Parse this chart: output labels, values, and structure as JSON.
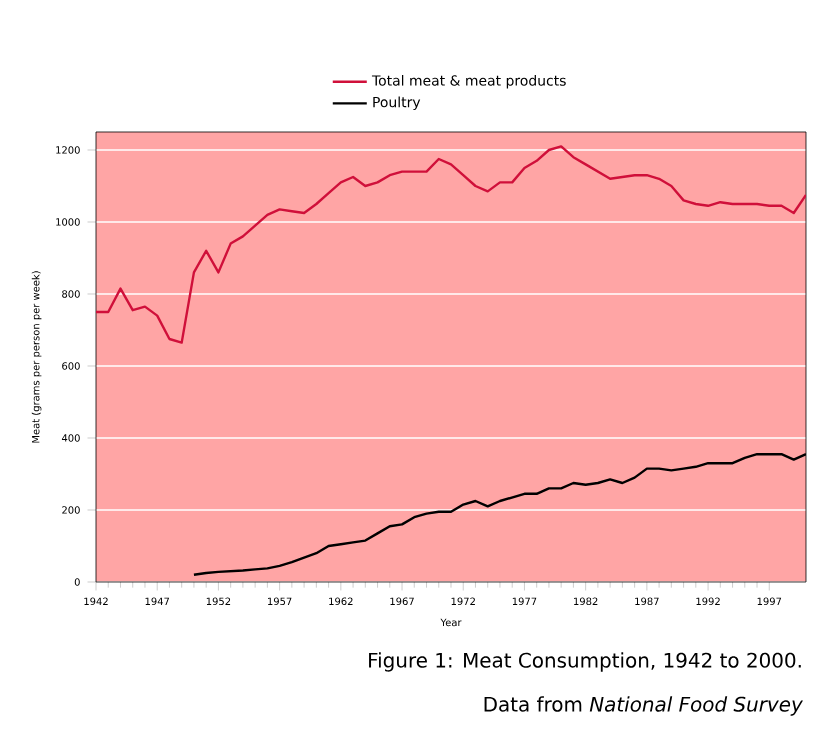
{
  "chart_data": {
    "type": "line",
    "xlabel": "Year",
    "ylabel": "Meat (grams per person per week)",
    "xlim": [
      1942,
      2000
    ],
    "xticks": [
      1942,
      1947,
      1952,
      1957,
      1962,
      1967,
      1972,
      1977,
      1982,
      1987,
      1992,
      1997
    ],
    "ylim": [
      0,
      1250
    ],
    "yticks": [
      0,
      200,
      400,
      600,
      800,
      1000,
      1200
    ],
    "grid": "y",
    "legend": "top",
    "line_style": "solid",
    "series": [
      {
        "name": "Total meat & meat products",
        "color": "#d0103a",
        "x": [
          1942,
          1943,
          1944,
          1945,
          1946,
          1947,
          1948,
          1949,
          1950,
          1951,
          1952,
          1953,
          1954,
          1955,
          1956,
          1957,
          1958,
          1959,
          1960,
          1961,
          1962,
          1963,
          1964,
          1965,
          1966,
          1967,
          1968,
          1969,
          1970,
          1971,
          1972,
          1973,
          1974,
          1975,
          1976,
          1977,
          1978,
          1979,
          1980,
          1981,
          1982,
          1983,
          1984,
          1985,
          1986,
          1987,
          1988,
          1989,
          1990,
          1991,
          1992,
          1993,
          1994,
          1995,
          1996,
          1997,
          1998,
          1999,
          2000
        ],
        "values": [
          750,
          750,
          815,
          755,
          765,
          740,
          675,
          665,
          860,
          920,
          860,
          940,
          960,
          990,
          1020,
          1035,
          1030,
          1025,
          1050,
          1080,
          1110,
          1125,
          1100,
          1110,
          1130,
          1140,
          1140,
          1140,
          1175,
          1160,
          1130,
          1100,
          1085,
          1110,
          1110,
          1150,
          1170,
          1200,
          1210,
          1180,
          1160,
          1140,
          1120,
          1125,
          1130,
          1130,
          1120,
          1100,
          1060,
          1050,
          1045,
          1055,
          1050,
          1050,
          1050,
          1045,
          1045,
          1025,
          1075
        ]
      },
      {
        "name": "Poultry",
        "color": "#000000",
        "x": [
          1950,
          1951,
          1952,
          1953,
          1954,
          1955,
          1956,
          1957,
          1958,
          1959,
          1960,
          1961,
          1962,
          1963,
          1964,
          1965,
          1966,
          1967,
          1968,
          1969,
          1970,
          1971,
          1972,
          1973,
          1974,
          1975,
          1976,
          1977,
          1978,
          1979,
          1980,
          1981,
          1982,
          1983,
          1984,
          1985,
          1986,
          1987,
          1988,
          1989,
          1990,
          1991,
          1992,
          1993,
          1994,
          1995,
          1996,
          1997,
          1998,
          1999,
          2000
        ],
        "values": [
          20,
          25,
          28,
          30,
          32,
          35,
          38,
          45,
          55,
          68,
          80,
          100,
          105,
          110,
          115,
          135,
          155,
          160,
          180,
          190,
          195,
          195,
          215,
          225,
          210,
          225,
          235,
          245,
          245,
          260,
          260,
          275,
          270,
          275,
          285,
          275,
          290,
          315,
          315,
          310,
          315,
          320,
          330,
          330,
          330,
          345,
          355,
          355,
          355,
          340,
          355
        ]
      }
    ],
    "annotations": [
      "Figure 1: Meat Consumption, 1942 to 2000.",
      "Data from *National Food Survey*"
    ]
  }
}
